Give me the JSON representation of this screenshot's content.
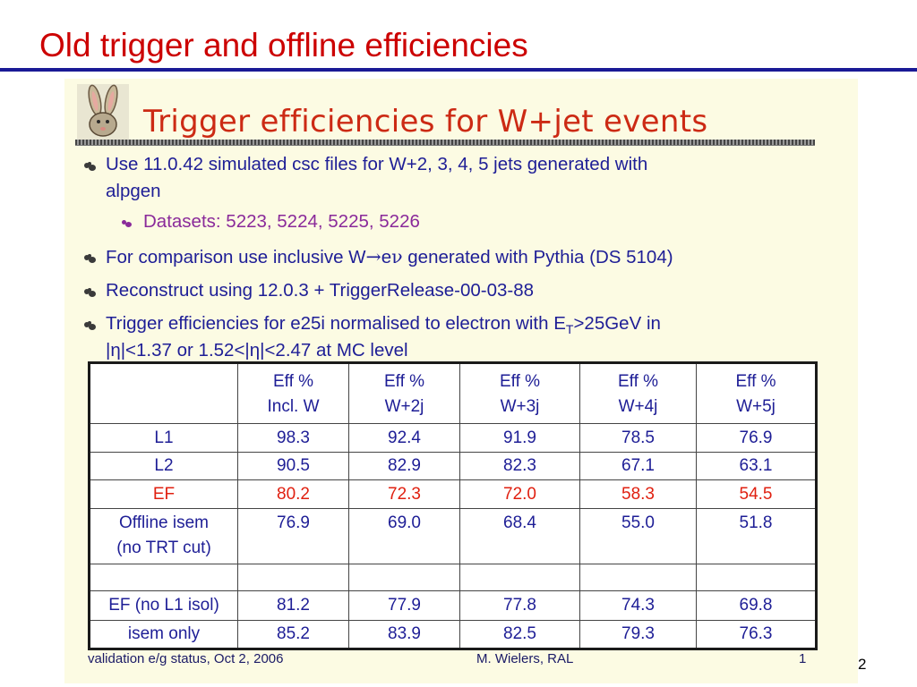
{
  "slide": {
    "title": "Old trigger and offline efficiencies",
    "page_number": "2"
  },
  "panel": {
    "title": "Trigger efficiencies for W+jet events",
    "bullets": [
      {
        "text": "Use 11.0.42 simulated csc files for W+2, 3, 4, 5 jets generated with",
        "text2": "alpgen"
      },
      {
        "text": "Datasets: 5223, 5224, 5225, 5226"
      },
      {
        "text_a": "For comparison use inclusive W",
        "arrow": "→",
        "text_b": "e",
        "nu": "ν",
        "text_c": " generated with Pythia (DS 5104)"
      },
      {
        "text": "Reconstruct using 12.0.3 + TriggerRelease-00-03-88"
      },
      {
        "text_a": "Trigger efficiencies for e25i normalised to electron with E",
        "sub": "T",
        "text_b": ">25GeV in",
        "line2": "|η|<1.37 or 1.52<|η|<2.47 at MC level"
      }
    ]
  },
  "table": {
    "headers": [
      {
        "line1": "Eff %",
        "line2": "Incl. W"
      },
      {
        "line1": "Eff %",
        "line2": "W+2j"
      },
      {
        "line1": "Eff %",
        "line2": "W+3j"
      },
      {
        "line1": "Eff %",
        "line2": "W+4j"
      },
      {
        "line1": "Eff %",
        "line2": "W+5j"
      }
    ],
    "rows": [
      {
        "label": "L1",
        "label2": "",
        "values": [
          "98.3",
          "92.4",
          "91.9",
          "78.5",
          "76.9"
        ]
      },
      {
        "label": "L2",
        "label2": "",
        "values": [
          "90.5",
          "82.9",
          "82.3",
          "67.1",
          "63.1"
        ]
      },
      {
        "label": "EF",
        "label2": "",
        "values": [
          "80.2",
          "72.3",
          "72.0",
          "58.3",
          "54.5"
        ]
      },
      {
        "label": "Offline isem",
        "label2": "(no TRT cut)",
        "values": [
          "76.9",
          "69.0",
          "68.4",
          "55.0",
          "51.8"
        ]
      },
      {
        "label": "",
        "label2": "",
        "values": [
          "",
          "",
          "",
          "",
          ""
        ]
      },
      {
        "label": "EF (no L1 isol)",
        "label2": "",
        "values": [
          "81.2",
          "77.9",
          "77.8",
          "74.3",
          "69.8"
        ]
      },
      {
        "label": "isem only",
        "label2": "",
        "values": [
          "85.2",
          "83.9",
          "82.5",
          "79.3",
          "76.3"
        ]
      }
    ]
  },
  "footer": {
    "left": "validation e/g status, Oct 2, 2006",
    "author": "M. Wielers, RAL",
    "inner_page": "1"
  },
  "colors": {
    "title_red": "#cc0000",
    "rule_blue": "#1a1a96",
    "text_blue": "#1e1e96",
    "ef_red": "#e02010",
    "sub_purple": "#8a2a9a",
    "panel_bg": "#fcfbe3"
  }
}
